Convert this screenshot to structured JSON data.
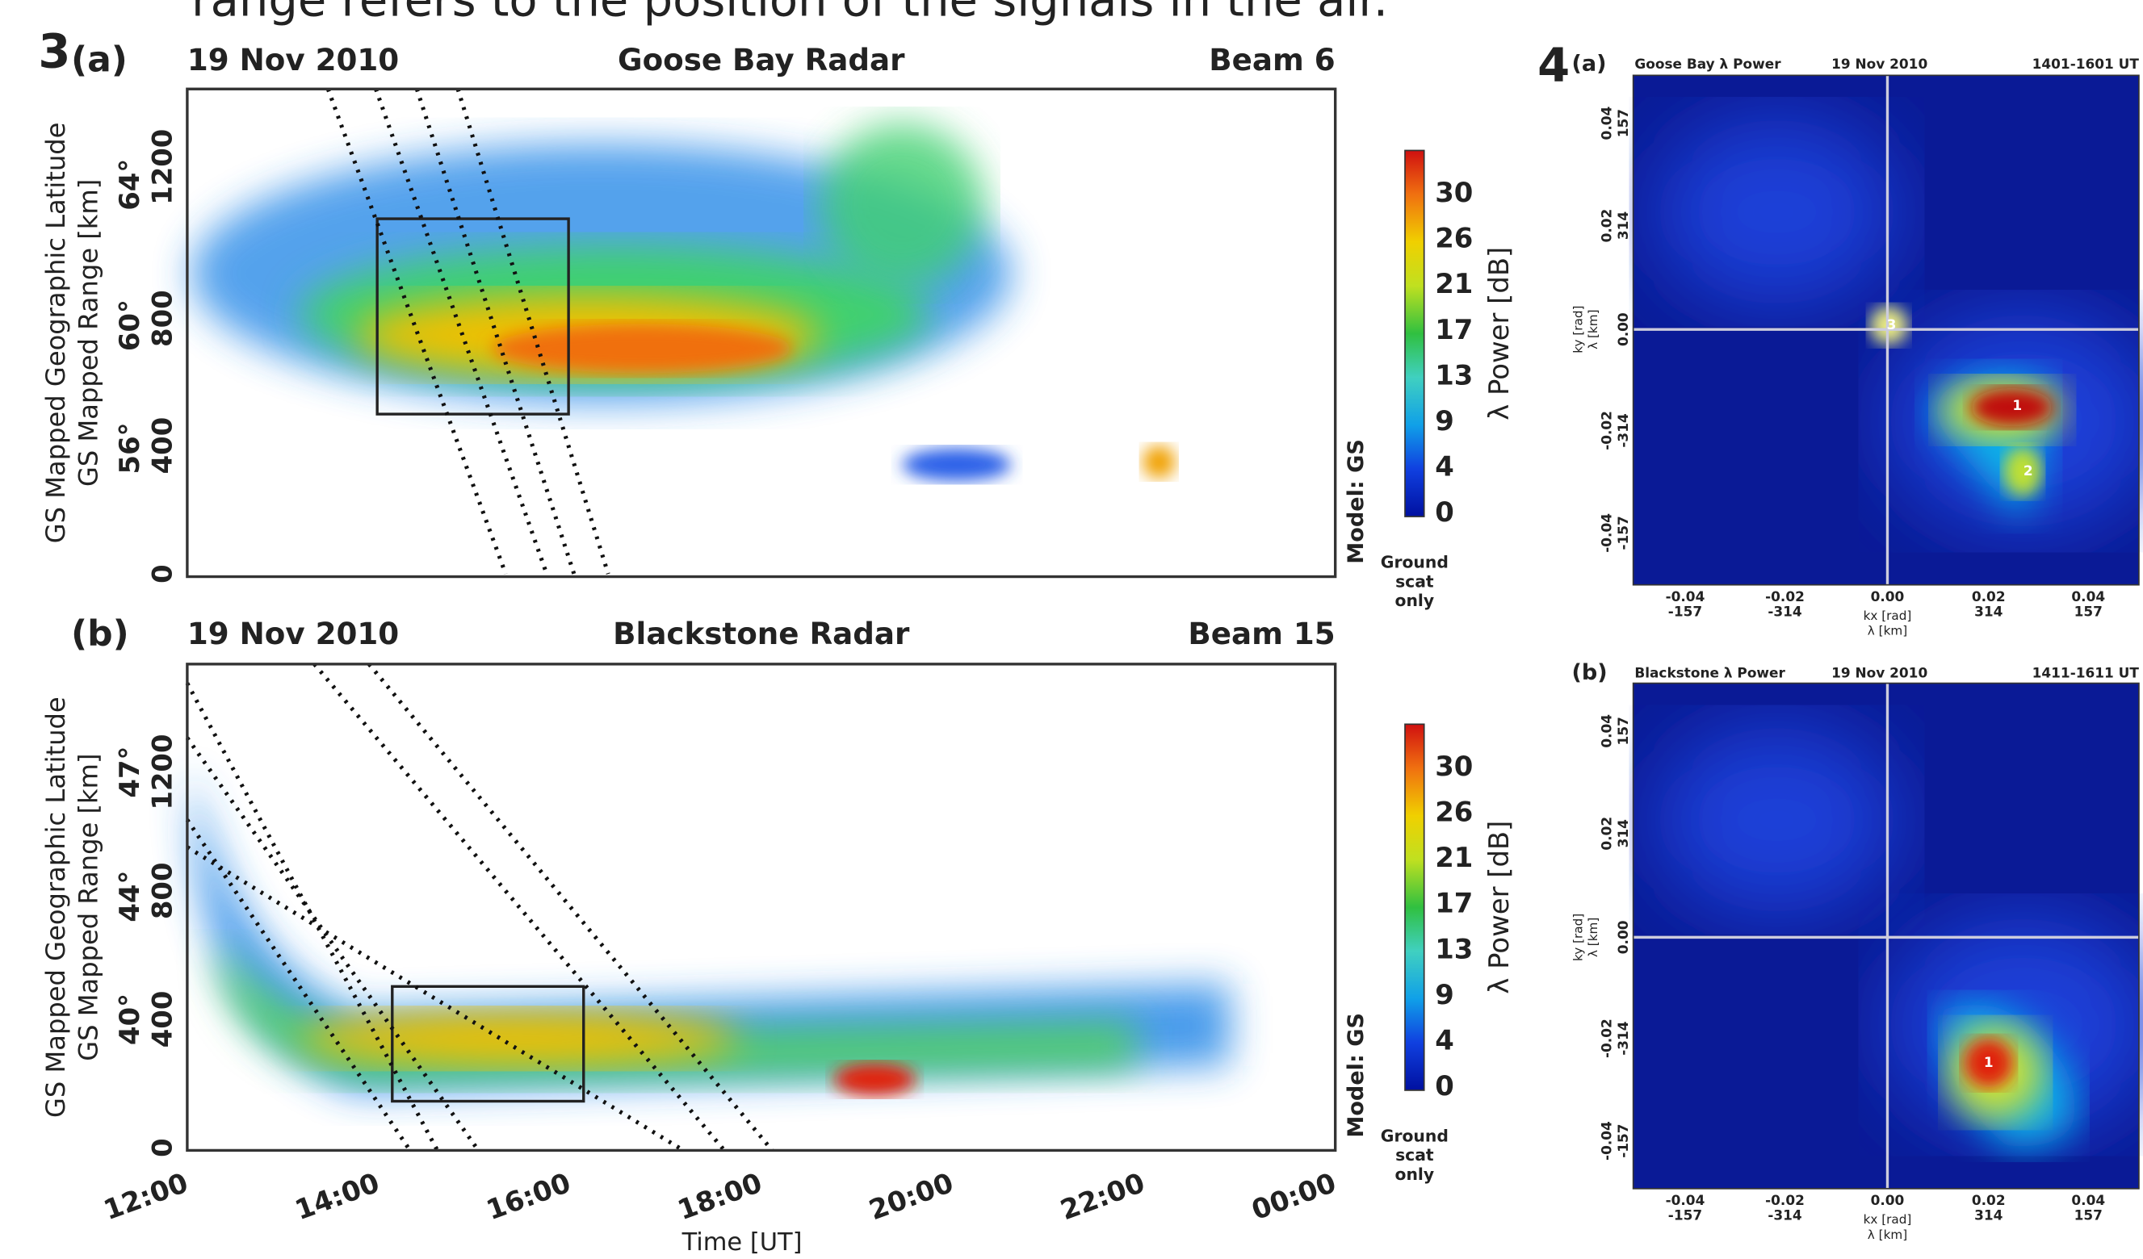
{
  "caption": "range refers to the position of the signals in the air.",
  "figure3": {
    "label": "3",
    "xticks": [
      "12:00",
      "14:00",
      "16:00",
      "18:00",
      "20:00",
      "22:00",
      "00:00"
    ],
    "xlabel": "Time [UT]",
    "panels": [
      {
        "label": "(a)",
        "date": "19 Nov 2010",
        "radar": "Goose Bay Radar",
        "beam": "Beam 6",
        "ylabel_lat": "GS Mapped Geographic Latitude",
        "ylabel_range": "GS Mapped Range [km]",
        "range_ticks": [
          "0",
          "400",
          "800",
          "1200"
        ],
        "lat_ticks": [
          "56°",
          "60°",
          "64°"
        ],
        "colorbar_ticks": [
          "30",
          "26",
          "21",
          "17",
          "13",
          "9",
          "4",
          "0"
        ],
        "colorbar_label": "λ Power [dB]",
        "model": "Model: GS",
        "note": [
          "Ground",
          "scat",
          "only"
        ]
      },
      {
        "label": "(b)",
        "date": "19 Nov 2010",
        "radar": "Blackstone Radar",
        "beam": "Beam 15",
        "ylabel_lat": "GS Mapped Geographic Latitude",
        "ylabel_range": "GS Mapped Range [km]",
        "range_ticks": [
          "0",
          "400",
          "800",
          "1200"
        ],
        "lat_ticks": [
          "40°",
          "44°",
          "47°"
        ],
        "colorbar_ticks": [
          "30",
          "26",
          "21",
          "17",
          "13",
          "9",
          "4",
          "0"
        ],
        "colorbar_label": "λ Power [dB]",
        "model": "Model: GS",
        "note": [
          "Ground",
          "scat",
          "only"
        ]
      }
    ]
  },
  "figure4": {
    "label": "4",
    "panels": [
      {
        "label": "(a)",
        "title": "Goose Bay λ Power",
        "date": "19 Nov 2010",
        "time": "1401-1601 UT",
        "xticks": [
          [
            "-0.04",
            "-157"
          ],
          [
            "-0.02",
            "-314"
          ],
          [
            "0.00"
          ],
          [
            "0.02",
            "314"
          ],
          [
            "0.04",
            "157"
          ]
        ],
        "xlabel": [
          "kx [rad]",
          "λ [km]"
        ],
        "yticks": [
          [
            "0.04",
            "157"
          ],
          [
            "0.02",
            "314"
          ],
          [
            "0.00"
          ],
          [
            "-0.02",
            "-314"
          ],
          [
            "-0.04",
            "-157"
          ]
        ],
        "ylabel": [
          "ky [rad]",
          "λ [km]"
        ],
        "peaks": [
          "1",
          "2",
          "3"
        ]
      },
      {
        "label": "(b)",
        "title": "Blackstone λ Power",
        "date": "19 Nov 2010",
        "time": "1411-1611 UT",
        "xticks": [
          [
            "-0.04",
            "-157"
          ],
          [
            "-0.02",
            "-314"
          ],
          [
            "0.00"
          ],
          [
            "0.02",
            "314"
          ],
          [
            "0.04",
            "157"
          ]
        ],
        "xlabel": [
          "kx [rad]",
          "λ [km]"
        ],
        "yticks": [
          [
            "0.04",
            "157"
          ],
          [
            "0.02",
            "314"
          ],
          [
            "0.00"
          ],
          [
            "-0.02",
            "-314"
          ],
          [
            "-0.04",
            "-157"
          ]
        ],
        "ylabel": [
          "ky [rad]",
          "λ [km]"
        ],
        "peaks": [
          "1"
        ]
      }
    ]
  }
}
